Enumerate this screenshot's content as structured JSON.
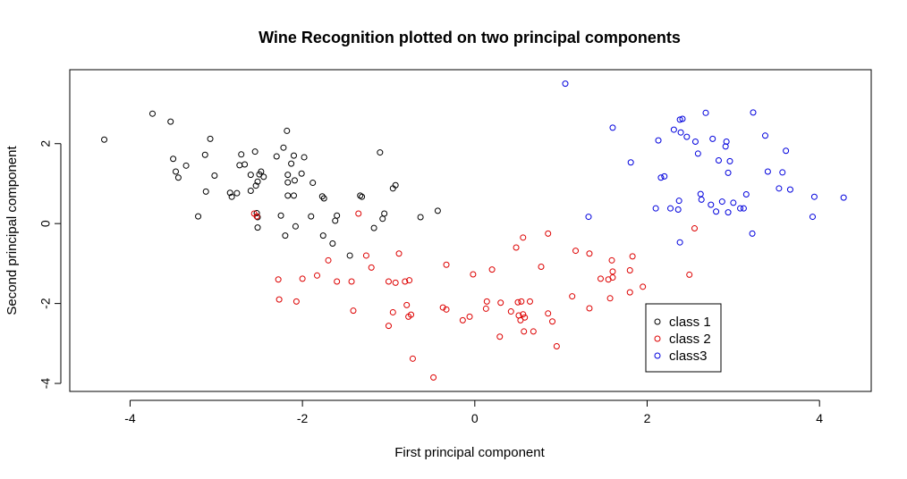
{
  "chart_data": {
    "type": "scatter",
    "title": "Wine Recognition plotted on two principal components",
    "xlabel": "First principal component",
    "ylabel": "Second principal component",
    "xlim": [
      -4.7,
      4.6
    ],
    "ylim": [
      -4.2,
      3.85
    ],
    "x_ticks": [
      {
        "value": -4,
        "label": "-4"
      },
      {
        "value": -2,
        "label": "-2"
      },
      {
        "value": 0,
        "label": "0"
      },
      {
        "value": 2,
        "label": "2"
      },
      {
        "value": 4,
        "label": "4"
      }
    ],
    "y_ticks": [
      {
        "value": -4,
        "label": "-4"
      },
      {
        "value": -2,
        "label": "-2"
      },
      {
        "value": 0,
        "label": "0"
      },
      {
        "value": 2,
        "label": "2"
      }
    ],
    "grid": false,
    "legend_position": "bottom-right",
    "series": [
      {
        "name": "class 1",
        "color": "#000000",
        "points": [
          [
            -4.3,
            2.1
          ],
          [
            -3.74,
            2.75
          ],
          [
            -3.53,
            2.55
          ],
          [
            -3.5,
            1.62
          ],
          [
            -3.47,
            1.3
          ],
          [
            -3.44,
            1.15
          ],
          [
            -3.35,
            1.45
          ],
          [
            -3.21,
            0.18
          ],
          [
            -3.13,
            1.72
          ],
          [
            -3.12,
            0.8
          ],
          [
            -3.07,
            2.12
          ],
          [
            -3.02,
            1.2
          ],
          [
            -2.84,
            0.77
          ],
          [
            -2.82,
            0.67
          ],
          [
            -2.76,
            0.76
          ],
          [
            -2.73,
            1.46
          ],
          [
            -2.71,
            1.73
          ],
          [
            -2.67,
            1.48
          ],
          [
            -2.6,
            0.82
          ],
          [
            -2.6,
            1.22
          ],
          [
            -2.55,
            1.8
          ],
          [
            -2.54,
            0.95
          ],
          [
            -2.52,
            1.05
          ],
          [
            -2.5,
            1.23
          ],
          [
            -2.48,
            1.3
          ],
          [
            -2.45,
            1.17
          ],
          [
            -2.53,
            0.26
          ],
          [
            -2.52,
            0.16
          ],
          [
            -2.52,
            -0.1
          ],
          [
            -2.3,
            1.68
          ],
          [
            -2.25,
            0.2
          ],
          [
            -2.22,
            1.9
          ],
          [
            -2.2,
            -0.3
          ],
          [
            -2.18,
            2.32
          ],
          [
            -2.17,
            1.03
          ],
          [
            -2.17,
            0.7
          ],
          [
            -2.17,
            1.22
          ],
          [
            -2.13,
            1.5
          ],
          [
            -2.1,
            1.7
          ],
          [
            -2.1,
            0.7
          ],
          [
            -2.09,
            1.08
          ],
          [
            -2.08,
            -0.07
          ],
          [
            -2.01,
            1.25
          ],
          [
            -1.98,
            1.66
          ],
          [
            -1.9,
            0.18
          ],
          [
            -1.88,
            1.02
          ],
          [
            -1.77,
            0.68
          ],
          [
            -1.76,
            -0.3
          ],
          [
            -1.75,
            0.63
          ],
          [
            -1.65,
            -0.5
          ],
          [
            -1.62,
            0.07
          ],
          [
            -1.6,
            0.2
          ],
          [
            -1.45,
            -0.8
          ],
          [
            -1.33,
            0.7
          ],
          [
            -1.31,
            0.67
          ],
          [
            -1.17,
            -0.11
          ],
          [
            -1.1,
            1.78
          ],
          [
            -1.07,
            0.12
          ],
          [
            -1.05,
            0.25
          ],
          [
            -0.95,
            0.88
          ],
          [
            -0.92,
            0.96
          ],
          [
            -0.63,
            0.16
          ],
          [
            -0.43,
            0.32
          ]
        ]
      },
      {
        "name": "class 2",
        "color": "#dd0000",
        "points": [
          [
            -2.56,
            0.25
          ],
          [
            -2.53,
            0.18
          ],
          [
            -2.28,
            -1.4
          ],
          [
            -2.27,
            -1.9
          ],
          [
            -2.07,
            -1.95
          ],
          [
            -2.0,
            -1.38
          ],
          [
            -1.83,
            -1.3
          ],
          [
            -1.7,
            -0.92
          ],
          [
            -1.6,
            -1.45
          ],
          [
            -1.43,
            -1.45
          ],
          [
            -1.41,
            -2.18
          ],
          [
            -1.35,
            0.25
          ],
          [
            -1.26,
            -0.8
          ],
          [
            -1.2,
            -1.1
          ],
          [
            -1.0,
            -1.45
          ],
          [
            -1.0,
            -2.56
          ],
          [
            -0.95,
            -2.22
          ],
          [
            -0.92,
            -1.48
          ],
          [
            -0.88,
            -0.75
          ],
          [
            -0.81,
            -1.45
          ],
          [
            -0.79,
            -2.04
          ],
          [
            -0.77,
            -2.33
          ],
          [
            -0.76,
            -1.42
          ],
          [
            -0.74,
            -2.28
          ],
          [
            -0.72,
            -3.38
          ],
          [
            -0.48,
            -3.85
          ],
          [
            -0.37,
            -2.1
          ],
          [
            -0.33,
            -1.03
          ],
          [
            -0.33,
            -2.15
          ],
          [
            -0.14,
            -2.42
          ],
          [
            -0.06,
            -2.33
          ],
          [
            -0.02,
            -1.27
          ],
          [
            0.13,
            -2.13
          ],
          [
            0.14,
            -1.95
          ],
          [
            0.2,
            -1.15
          ],
          [
            0.29,
            -2.83
          ],
          [
            0.3,
            -1.98
          ],
          [
            0.42,
            -2.2
          ],
          [
            0.48,
            -0.6
          ],
          [
            0.5,
            -1.97
          ],
          [
            0.51,
            -2.3
          ],
          [
            0.53,
            -2.42
          ],
          [
            0.54,
            -1.95
          ],
          [
            0.56,
            -2.27
          ],
          [
            0.56,
            -0.35
          ],
          [
            0.57,
            -2.7
          ],
          [
            0.58,
            -2.35
          ],
          [
            0.64,
            -1.95
          ],
          [
            0.68,
            -2.7
          ],
          [
            0.77,
            -1.08
          ],
          [
            0.85,
            -2.25
          ],
          [
            0.85,
            -0.25
          ],
          [
            0.9,
            -2.45
          ],
          [
            0.95,
            -3.07
          ],
          [
            1.13,
            -1.82
          ],
          [
            1.17,
            -0.68
          ],
          [
            1.33,
            -2.12
          ],
          [
            1.33,
            -0.75
          ],
          [
            1.46,
            -1.38
          ],
          [
            1.55,
            -1.4
          ],
          [
            1.57,
            -1.87
          ],
          [
            1.59,
            -0.92
          ],
          [
            1.6,
            -1.2
          ],
          [
            1.6,
            -1.35
          ],
          [
            1.8,
            -1.72
          ],
          [
            1.8,
            -1.17
          ],
          [
            1.83,
            -0.82
          ],
          [
            1.95,
            -1.58
          ],
          [
            2.49,
            -1.28
          ],
          [
            2.55,
            -0.12
          ]
        ]
      },
      {
        "name": "class3",
        "color": "#0000dd",
        "points": [
          [
            1.05,
            3.5
          ],
          [
            1.32,
            0.17
          ],
          [
            1.6,
            2.4
          ],
          [
            1.81,
            1.53
          ],
          [
            2.1,
            0.38
          ],
          [
            2.13,
            2.08
          ],
          [
            2.16,
            1.15
          ],
          [
            2.2,
            1.18
          ],
          [
            2.27,
            0.38
          ],
          [
            2.31,
            2.35
          ],
          [
            2.36,
            0.35
          ],
          [
            2.37,
            0.57
          ],
          [
            2.38,
            -0.47
          ],
          [
            2.38,
            2.6
          ],
          [
            2.39,
            2.28
          ],
          [
            2.41,
            2.62
          ],
          [
            2.46,
            2.17
          ],
          [
            2.56,
            2.05
          ],
          [
            2.59,
            1.75
          ],
          [
            2.62,
            0.74
          ],
          [
            2.63,
            0.6
          ],
          [
            2.68,
            2.77
          ],
          [
            2.74,
            0.47
          ],
          [
            2.76,
            2.12
          ],
          [
            2.8,
            0.3
          ],
          [
            2.83,
            1.58
          ],
          [
            2.87,
            0.55
          ],
          [
            2.91,
            1.93
          ],
          [
            2.92,
            2.05
          ],
          [
            2.94,
            0.28
          ],
          [
            2.94,
            1.27
          ],
          [
            2.96,
            1.56
          ],
          [
            3.0,
            0.52
          ],
          [
            3.08,
            0.38
          ],
          [
            3.12,
            0.38
          ],
          [
            3.15,
            0.73
          ],
          [
            3.22,
            -0.25
          ],
          [
            3.23,
            2.78
          ],
          [
            3.37,
            2.2
          ],
          [
            3.4,
            1.3
          ],
          [
            3.53,
            0.88
          ],
          [
            3.57,
            1.28
          ],
          [
            3.61,
            1.82
          ],
          [
            3.66,
            0.85
          ],
          [
            3.92,
            0.17
          ],
          [
            3.94,
            0.67
          ],
          [
            4.28,
            0.65
          ]
        ]
      }
    ]
  }
}
